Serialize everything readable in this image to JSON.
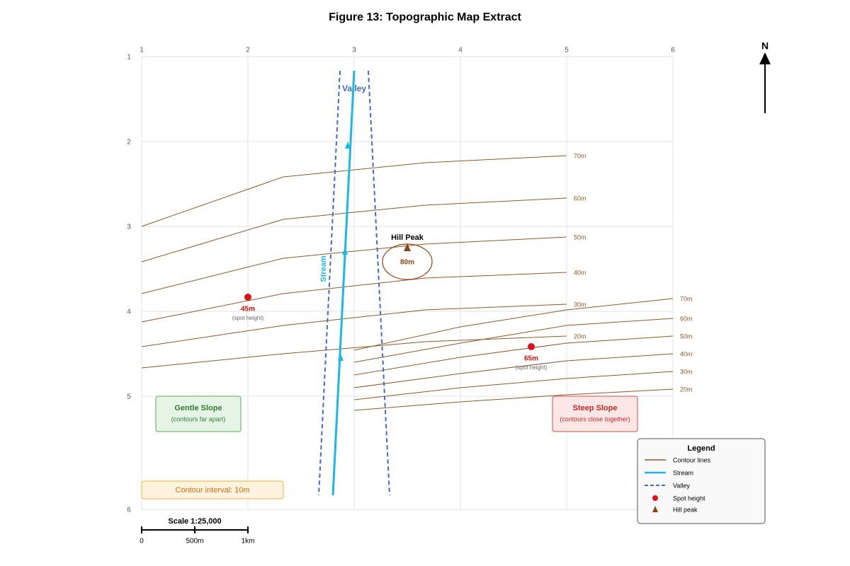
{
  "title": "Figure 13: Topographic Map Extract",
  "grid": {
    "columns": [
      "1",
      "2",
      "3",
      "4",
      "5",
      "6"
    ],
    "rows": [
      "1",
      "2",
      "3",
      "4",
      "5",
      "6"
    ]
  },
  "contours_west": [
    "70m",
    "60m",
    "50m",
    "40m",
    "30m",
    "20m"
  ],
  "contours_east": [
    "70m",
    "60m",
    "50m",
    "40m",
    "30m",
    "20m"
  ],
  "labels": {
    "valley": "Valley",
    "stream": "Stream",
    "hill_peak": "Hill Peak",
    "peak_height": "80m"
  },
  "spot_heights": [
    {
      "height": "45m",
      "note": "(spot height)"
    },
    {
      "height": "65m",
      "note": "(spot height)"
    }
  ],
  "gentle_slope": {
    "title": "Gentle Slope",
    "note": "(contours far apart)"
  },
  "steep_slope": {
    "title": "Steep Slope",
    "note": "(contours close together)"
  },
  "contour_interval": "Contour interval: 10m",
  "scale": {
    "title": "Scale 1:25,000",
    "ticks": [
      "0",
      "500m",
      "1km"
    ]
  },
  "north": "N",
  "legend": {
    "title": "Legend",
    "items": [
      "Contour lines",
      "Stream",
      "Valley",
      "Spot height",
      "Hill peak"
    ]
  }
}
